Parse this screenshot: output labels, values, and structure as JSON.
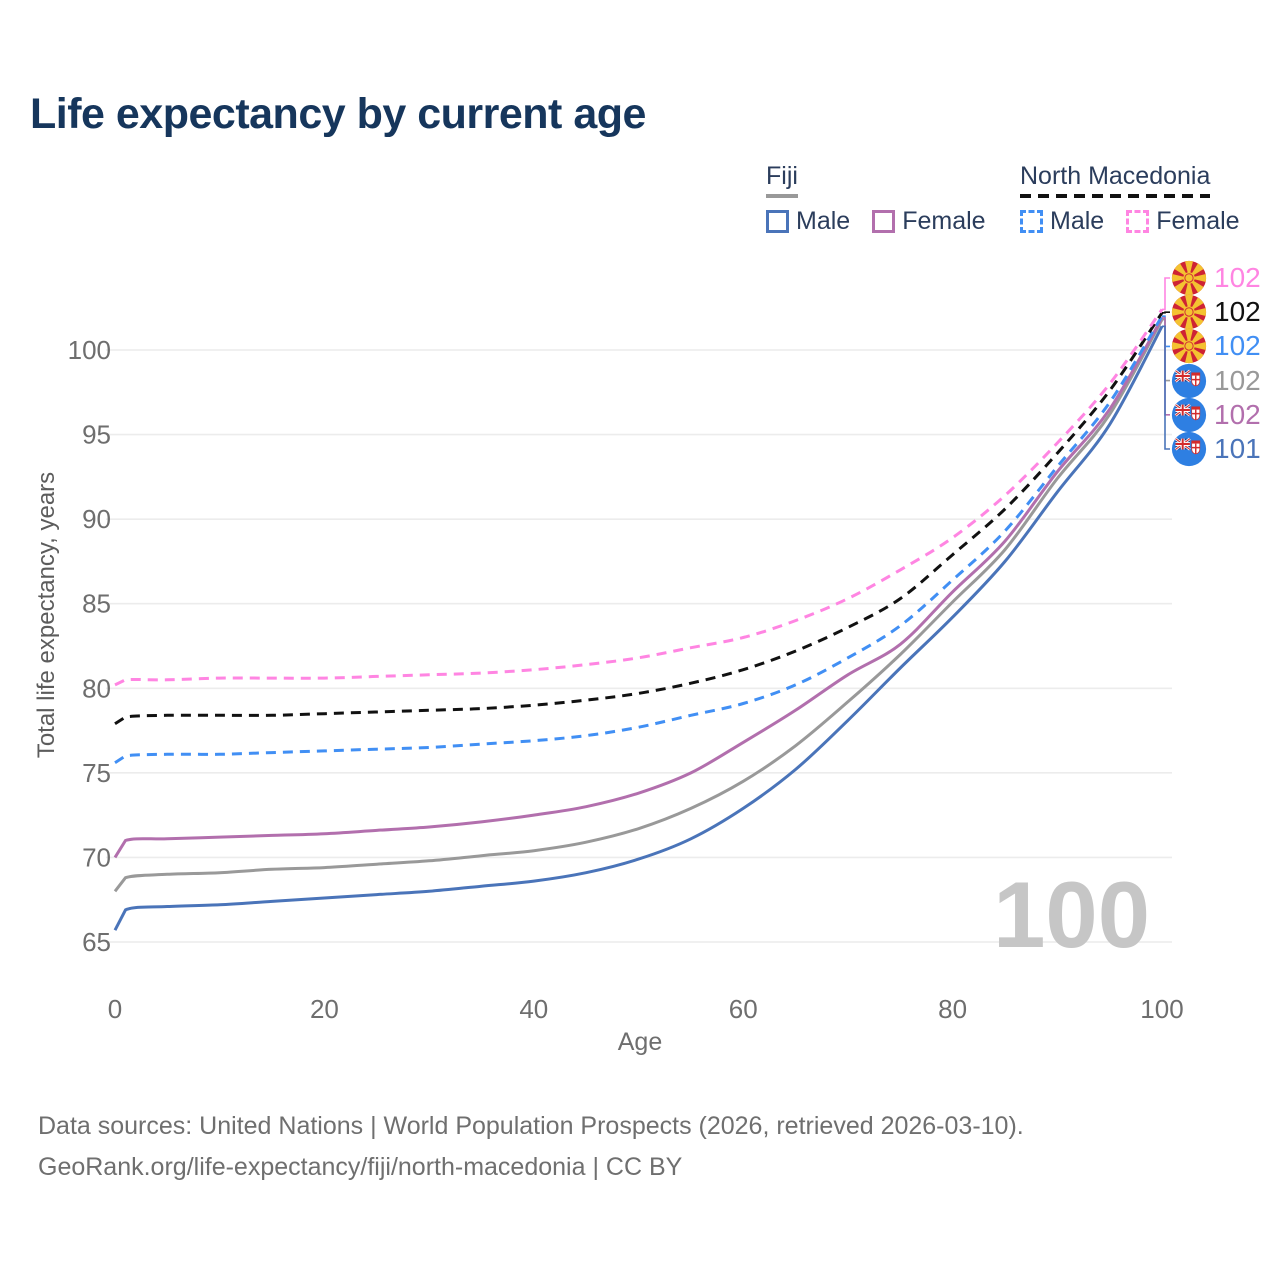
{
  "title": "Life expectancy by current age",
  "legend": {
    "groups": [
      {
        "title": "Fiji",
        "line_style": "solid",
        "underline_color": "#999999",
        "items": [
          {
            "label": "Male",
            "color": "#4a74b9"
          },
          {
            "label": "Female",
            "color": "#b26fad"
          }
        ]
      },
      {
        "title": "North Macedonia",
        "line_style": "dashed",
        "underline_color": "#111111",
        "items": [
          {
            "label": "Male",
            "color": "#418ff4"
          },
          {
            "label": "Female",
            "color": "#ff85e2"
          }
        ]
      }
    ]
  },
  "chart_data": {
    "type": "line",
    "title": "Life expectancy by current age",
    "xlabel": "Age",
    "ylabel": "Total life expectancy, years",
    "x_ticks": [
      0,
      20,
      40,
      60,
      80,
      100
    ],
    "y_ticks": [
      65,
      70,
      75,
      80,
      85,
      90,
      95,
      100
    ],
    "xlim": [
      0,
      100
    ],
    "ylim": [
      63.5,
      103.5
    ],
    "grid": "horizontal-only",
    "legend_position": "top-right",
    "x": [
      0,
      1,
      5,
      10,
      15,
      20,
      25,
      30,
      35,
      40,
      45,
      50,
      55,
      60,
      65,
      70,
      75,
      80,
      85,
      90,
      95,
      100
    ],
    "series": [
      {
        "name": "Fiji — Male",
        "country": "Fiji",
        "sex": "Male",
        "color": "#4a74b9",
        "line_style": "solid",
        "values": [
          65.7,
          66.9,
          67.1,
          67.2,
          67.4,
          67.6,
          67.8,
          68.0,
          68.3,
          68.6,
          69.1,
          69.9,
          71.1,
          72.9,
          75.2,
          78.1,
          81.2,
          84.2,
          87.5,
          91.6,
          95.6,
          101.4
        ],
        "end_label": "101"
      },
      {
        "name": "Fiji — Both sexes",
        "country": "Fiji",
        "sex": "Both",
        "color": "#999999",
        "line_style": "solid",
        "values": [
          68.0,
          68.8,
          69.0,
          69.1,
          69.3,
          69.4,
          69.6,
          69.8,
          70.1,
          70.4,
          70.9,
          71.7,
          72.9,
          74.5,
          76.6,
          79.2,
          82.0,
          85.1,
          88.2,
          92.4,
          96.2,
          101.8
        ],
        "end_label": "102"
      },
      {
        "name": "Fiji — Female",
        "country": "Fiji",
        "sex": "Female",
        "color": "#b26fad",
        "line_style": "solid",
        "values": [
          70.0,
          71.0,
          71.1,
          71.2,
          71.3,
          71.4,
          71.6,
          71.8,
          72.1,
          72.5,
          73.0,
          73.8,
          75.0,
          76.8,
          78.7,
          80.8,
          82.6,
          85.7,
          88.7,
          92.8,
          96.5,
          101.9
        ],
        "end_label": "102"
      },
      {
        "name": "North Macedonia — Male",
        "country": "North Macedonia",
        "sex": "Male",
        "color": "#418ff4",
        "line_style": "dashed",
        "values": [
          75.6,
          76.0,
          76.1,
          76.1,
          76.2,
          76.3,
          76.4,
          76.5,
          76.7,
          76.9,
          77.2,
          77.7,
          78.4,
          79.1,
          80.2,
          81.8,
          83.7,
          86.4,
          89.3,
          93.1,
          96.9,
          102.0
        ],
        "end_label": "102"
      },
      {
        "name": "North Macedonia — Both sexes",
        "country": "North Macedonia",
        "sex": "Both",
        "color": "#111111",
        "line_style": "dashed",
        "values": [
          77.9,
          78.3,
          78.4,
          78.4,
          78.4,
          78.5,
          78.6,
          78.7,
          78.8,
          79.0,
          79.3,
          79.7,
          80.3,
          81.1,
          82.2,
          83.6,
          85.3,
          87.9,
          90.6,
          93.9,
          97.6,
          102.2
        ],
        "end_label": "102"
      },
      {
        "name": "North Macedonia — Female",
        "country": "North Macedonia",
        "sex": "Female",
        "color": "#ff85e2",
        "line_style": "dashed",
        "values": [
          80.2,
          80.5,
          80.5,
          80.6,
          80.6,
          80.6,
          80.7,
          80.8,
          80.9,
          81.1,
          81.4,
          81.8,
          82.4,
          83.0,
          84.0,
          85.3,
          87.0,
          88.9,
          91.4,
          94.5,
          98.0,
          102.4
        ],
        "end_label": "102"
      }
    ],
    "end_labels": [
      {
        "series": "North Macedonia — Female",
        "flag": "north-macedonia",
        "value": "102",
        "color": "#ff85e2"
      },
      {
        "series": "North Macedonia — Both sexes",
        "flag": "north-macedonia",
        "value": "102",
        "color": "#111111"
      },
      {
        "series": "North Macedonia — Male",
        "flag": "north-macedonia",
        "value": "102",
        "color": "#418ff4"
      },
      {
        "series": "Fiji — Both sexes",
        "flag": "fiji",
        "value": "102",
        "color": "#999999"
      },
      {
        "series": "Fiji — Female",
        "flag": "fiji",
        "value": "102",
        "color": "#b26fad"
      },
      {
        "series": "Fiji — Male",
        "flag": "fiji",
        "value": "101",
        "color": "#4a74b9"
      }
    ]
  },
  "annotations": {
    "hovered_age": "100"
  },
  "footer": {
    "sources": "Data sources: United Nations | World Population Prospects (2026, retrieved 2026-03-10).",
    "attribution": "GeoRank.org/life-expectancy/fiji/north-macedonia | CC BY"
  },
  "colors": {
    "title": "#16365c",
    "legend_text": "#2b3d5c",
    "axis_text": "#6e6e6e",
    "grid": "#ececec",
    "watermark": "#c6c6c6",
    "footer_text": "#6f6f6f",
    "background": "#ffffff"
  }
}
